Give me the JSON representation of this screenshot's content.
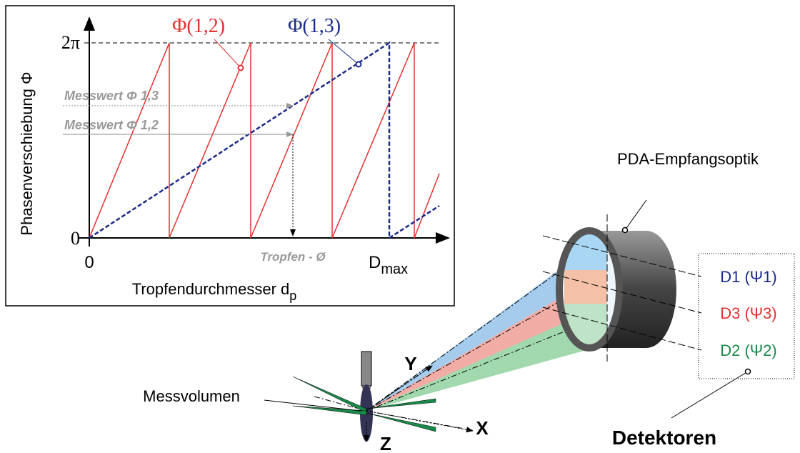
{
  "plot": {
    "y_axis_label": "Phasenverschiebung Φ",
    "x_axis_label": {
      "text": "Tropfendurchmesser d",
      "sub": "p"
    },
    "y_tick_top": "2π",
    "y_tick_zero": "0",
    "x_tick_zero": "0",
    "x_tick_max": {
      "text": "D",
      "sub": "max"
    },
    "curve_12": "Φ(1,2)",
    "curve_13": "Φ(1,3)",
    "measured_13": "Messwert Φ 1,3",
    "measured_12": "Messwert Φ 1,2",
    "droplet_diameter": "Tropfen - Ø"
  },
  "optics": {
    "title": "PDA-Empfangsoptik",
    "detectors": [
      "D1 (Ψ1)",
      "D3 (Ψ3)",
      "D2 (Ψ2)"
    ],
    "measurement_volume": "Messvolumen",
    "axes": {
      "x": "X",
      "y": "Y",
      "z": "Z"
    },
    "detectors_label": "Detektoren"
  }
}
